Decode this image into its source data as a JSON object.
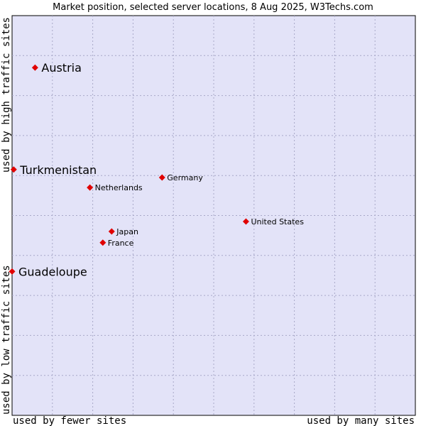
{
  "chart_data": {
    "type": "scatter",
    "title": "Market position, selected server locations, 8 Aug 2025, W3Techs.com",
    "xlabel_left": "used by fewer sites",
    "xlabel_right": "used by many sites",
    "ylabel_bottom": "used by low traffic sites",
    "ylabel_top": "used by high traffic sites",
    "xlim": [
      0,
      10
    ],
    "ylim": [
      0,
      10
    ],
    "grid": true,
    "background_color": "#e3e3f8",
    "grid_color": "#a8a8c8",
    "point_color": "#e00000",
    "points": [
      {
        "label": "Austria",
        "x": 0.57,
        "y": 8.7,
        "emphasis": true
      },
      {
        "label": "Turkmenistan",
        "x": 0.04,
        "y": 6.15,
        "emphasis": true
      },
      {
        "label": "Guadeloupe",
        "x": 0.0,
        "y": 3.6,
        "emphasis": true
      },
      {
        "label": "Germany",
        "x": 3.72,
        "y": 5.95,
        "emphasis": false
      },
      {
        "label": "Netherlands",
        "x": 1.93,
        "y": 5.7,
        "emphasis": false
      },
      {
        "label": "United States",
        "x": 5.8,
        "y": 4.85,
        "emphasis": false
      },
      {
        "label": "Japan",
        "x": 2.47,
        "y": 4.6,
        "emphasis": false
      },
      {
        "label": "France",
        "x": 2.25,
        "y": 4.32,
        "emphasis": false
      }
    ]
  }
}
